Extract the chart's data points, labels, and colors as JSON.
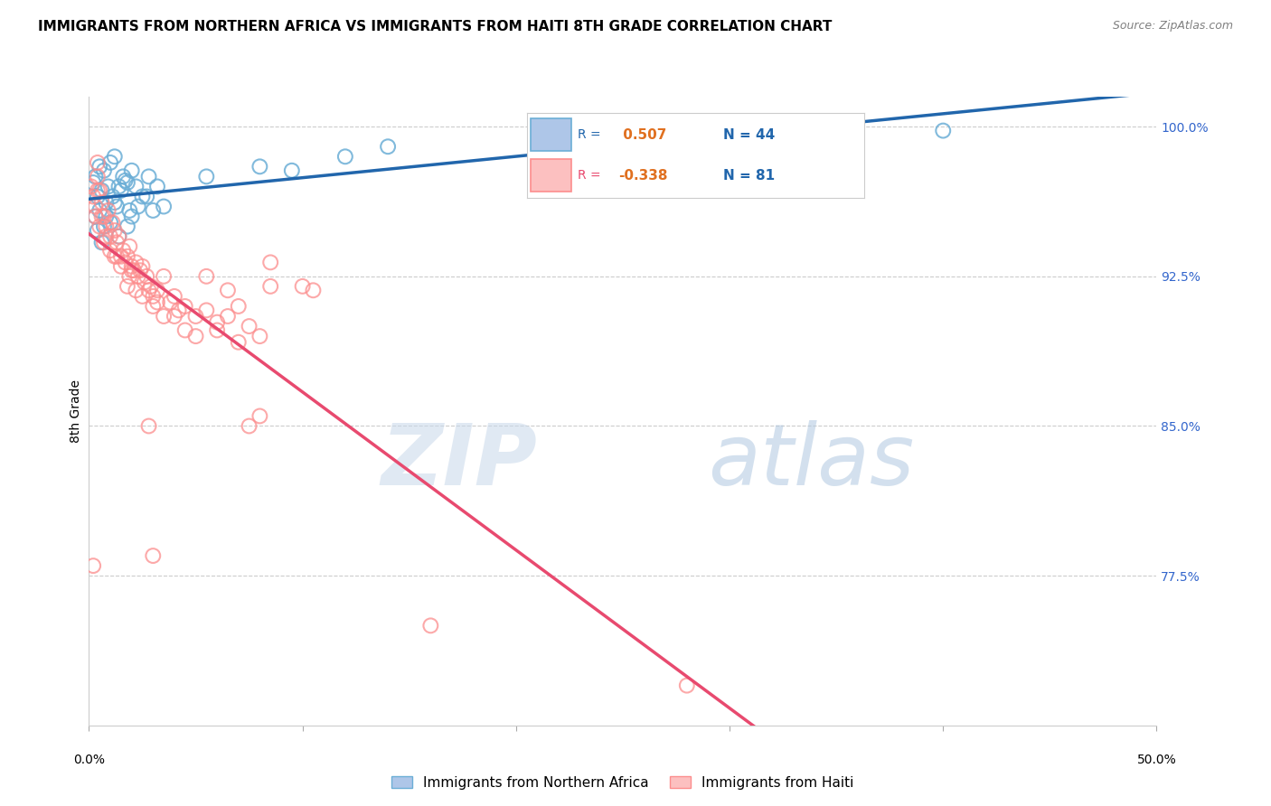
{
  "title": "IMMIGRANTS FROM NORTHERN AFRICA VS IMMIGRANTS FROM HAITI 8TH GRADE CORRELATION CHART",
  "source": "Source: ZipAtlas.com",
  "ylabel": "8th Grade",
  "ylabel_right_ticks": [
    100.0,
    92.5,
    85.0,
    77.5
  ],
  "xlim": [
    0.0,
    50.0
  ],
  "ylim": [
    70.0,
    101.5
  ],
  "blue_R": 0.507,
  "blue_N": 44,
  "pink_R": -0.338,
  "pink_N": 81,
  "legend_label_blue": "Immigrants from Northern Africa",
  "legend_label_pink": "Immigrants from Haiti",
  "watermark_zip": "ZIP",
  "watermark_atlas": "atlas",
  "blue_color": "#6baed6",
  "pink_color": "#fc8d8d",
  "blue_line_color": "#2166ac",
  "pink_line_color": "#e84a6f",
  "blue_dots": [
    [
      0.3,
      97.5
    ],
    [
      0.5,
      98.0
    ],
    [
      0.7,
      97.8
    ],
    [
      1.0,
      98.2
    ],
    [
      1.2,
      98.5
    ],
    [
      1.4,
      97.0
    ],
    [
      1.6,
      97.5
    ],
    [
      1.8,
      97.2
    ],
    [
      2.0,
      97.8
    ],
    [
      0.4,
      96.5
    ],
    [
      0.6,
      96.8
    ],
    [
      0.8,
      96.2
    ],
    [
      1.1,
      96.5
    ],
    [
      1.5,
      96.8
    ],
    [
      2.2,
      97.0
    ],
    [
      2.5,
      96.5
    ],
    [
      0.2,
      97.2
    ],
    [
      0.9,
      97.0
    ],
    [
      1.3,
      96.0
    ],
    [
      1.7,
      97.3
    ],
    [
      2.8,
      97.5
    ],
    [
      3.2,
      97.0
    ],
    [
      0.3,
      95.5
    ],
    [
      0.5,
      95.8
    ],
    [
      0.8,
      95.5
    ],
    [
      1.0,
      95.2
    ],
    [
      1.2,
      96.2
    ],
    [
      1.9,
      95.8
    ],
    [
      2.3,
      96.0
    ],
    [
      2.7,
      96.5
    ],
    [
      0.4,
      94.8
    ],
    [
      0.7,
      95.0
    ],
    [
      1.4,
      94.5
    ],
    [
      2.0,
      95.5
    ],
    [
      3.5,
      96.0
    ],
    [
      5.5,
      97.5
    ],
    [
      8.0,
      98.0
    ],
    [
      9.5,
      97.8
    ],
    [
      12.0,
      98.5
    ],
    [
      14.0,
      99.0
    ],
    [
      40.0,
      99.8
    ],
    [
      0.6,
      94.2
    ],
    [
      1.8,
      95.0
    ],
    [
      3.0,
      95.8
    ]
  ],
  "pink_dots": [
    [
      0.1,
      97.0
    ],
    [
      0.2,
      96.5
    ],
    [
      0.3,
      96.0
    ],
    [
      0.4,
      97.5
    ],
    [
      0.5,
      96.8
    ],
    [
      0.6,
      96.2
    ],
    [
      0.7,
      95.5
    ],
    [
      0.8,
      95.0
    ],
    [
      0.9,
      95.8
    ],
    [
      1.0,
      94.5
    ],
    [
      1.1,
      95.2
    ],
    [
      1.2,
      94.8
    ],
    [
      1.3,
      94.2
    ],
    [
      1.4,
      94.5
    ],
    [
      1.5,
      93.5
    ],
    [
      1.6,
      93.8
    ],
    [
      1.7,
      93.2
    ],
    [
      1.8,
      93.5
    ],
    [
      1.9,
      94.0
    ],
    [
      2.0,
      93.0
    ],
    [
      2.1,
      92.8
    ],
    [
      2.2,
      93.2
    ],
    [
      2.3,
      92.5
    ],
    [
      2.4,
      92.8
    ],
    [
      2.5,
      93.0
    ],
    [
      2.6,
      92.2
    ],
    [
      2.7,
      92.5
    ],
    [
      2.8,
      91.8
    ],
    [
      2.9,
      92.0
    ],
    [
      3.0,
      91.5
    ],
    [
      3.2,
      91.8
    ],
    [
      3.5,
      92.5
    ],
    [
      3.8,
      91.2
    ],
    [
      4.0,
      91.5
    ],
    [
      4.2,
      90.8
    ],
    [
      4.5,
      91.0
    ],
    [
      5.0,
      90.5
    ],
    [
      5.5,
      90.8
    ],
    [
      6.0,
      90.2
    ],
    [
      6.5,
      90.5
    ],
    [
      7.0,
      91.0
    ],
    [
      7.5,
      90.0
    ],
    [
      8.0,
      89.5
    ],
    [
      0.3,
      95.5
    ],
    [
      0.5,
      95.0
    ],
    [
      0.8,
      94.5
    ],
    [
      1.0,
      93.8
    ],
    [
      1.5,
      93.0
    ],
    [
      2.0,
      92.8
    ],
    [
      2.5,
      91.5
    ],
    [
      3.0,
      91.0
    ],
    [
      0.4,
      96.8
    ],
    [
      0.6,
      95.5
    ],
    [
      1.2,
      93.5
    ],
    [
      1.8,
      92.0
    ],
    [
      2.2,
      91.8
    ],
    [
      3.5,
      90.5
    ],
    [
      4.5,
      89.8
    ],
    [
      5.5,
      92.5
    ],
    [
      6.5,
      91.8
    ],
    [
      8.5,
      93.2
    ],
    [
      8.5,
      92.0
    ],
    [
      10.0,
      92.0
    ],
    [
      10.5,
      91.8
    ],
    [
      0.7,
      94.2
    ],
    [
      1.3,
      93.5
    ],
    [
      1.9,
      92.5
    ],
    [
      2.8,
      85.0
    ],
    [
      3.2,
      91.2
    ],
    [
      4.0,
      90.5
    ],
    [
      5.0,
      89.5
    ],
    [
      6.0,
      89.8
    ],
    [
      7.0,
      89.2
    ],
    [
      0.2,
      78.0
    ],
    [
      3.0,
      78.5
    ],
    [
      16.0,
      75.0
    ],
    [
      28.0,
      72.0
    ],
    [
      0.4,
      98.2
    ],
    [
      8.0,
      85.5
    ],
    [
      7.5,
      85.0
    ]
  ]
}
